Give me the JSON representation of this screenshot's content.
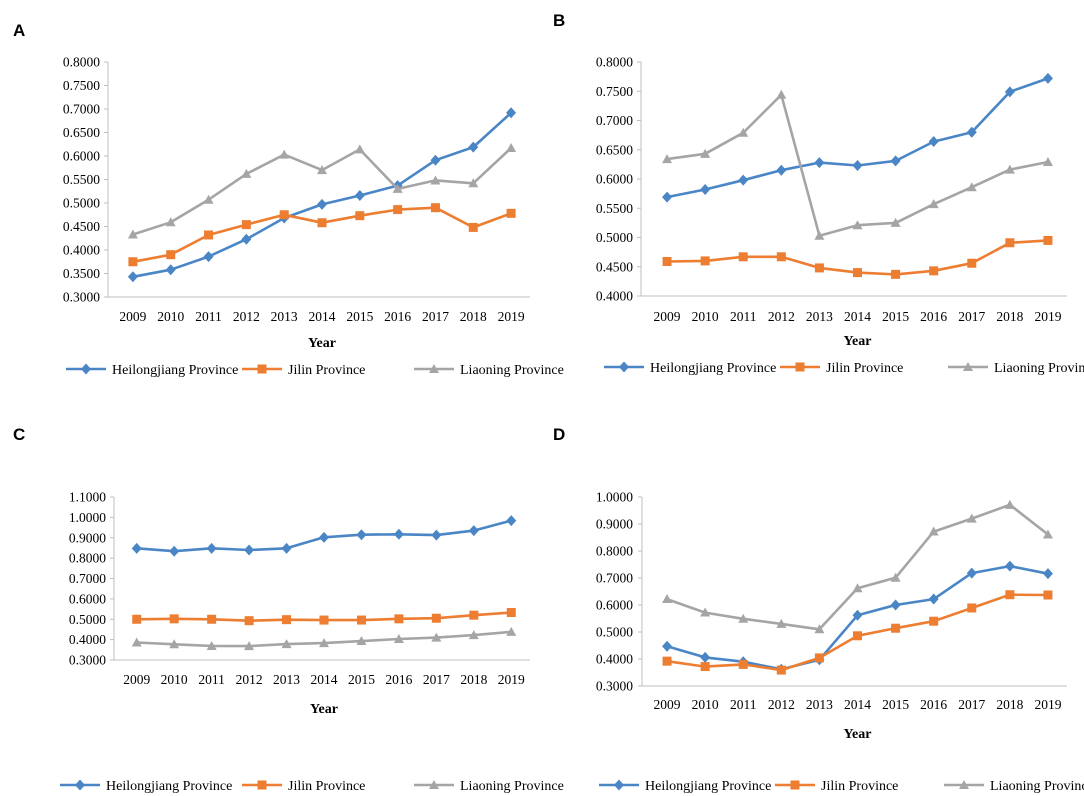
{
  "chart_data": [
    {
      "panel": "A",
      "type": "line",
      "xlabel": "Year",
      "ylabel": "",
      "ylim": [
        0.3,
        0.8
      ],
      "yticks": [
        "0.3000",
        "0.3500",
        "0.4000",
        "0.4500",
        "0.5000",
        "0.5500",
        "0.6000",
        "0.6500",
        "0.7000",
        "0.7500",
        "0.8000"
      ],
      "categories": [
        "2009",
        "2010",
        "2011",
        "2012",
        "2013",
        "2014",
        "2015",
        "2016",
        "2017",
        "2018",
        "2019"
      ],
      "legend_position": "bottom",
      "series": [
        {
          "name": "Heilongjiang Province",
          "color": "#4a86c6",
          "marker": "diamond",
          "values": [
            0.343,
            0.358,
            0.386,
            0.423,
            0.468,
            0.497,
            0.516,
            0.537,
            0.591,
            0.619,
            0.692
          ]
        },
        {
          "name": "Jilin Province",
          "color": "#ed7d31",
          "marker": "square",
          "values": [
            0.375,
            0.39,
            0.432,
            0.454,
            0.475,
            0.458,
            0.473,
            0.486,
            0.49,
            0.448,
            0.478
          ]
        },
        {
          "name": "Liaoning Province",
          "color": "#a5a5a5",
          "marker": "triangle",
          "values": [
            0.433,
            0.459,
            0.507,
            0.562,
            0.603,
            0.57,
            0.614,
            0.53,
            0.548,
            0.542,
            0.617
          ]
        }
      ]
    },
    {
      "panel": "B",
      "type": "line",
      "xlabel": "Year",
      "ylabel": "",
      "ylim": [
        0.4,
        0.8
      ],
      "yticks": [
        "0.4000",
        "0.4500",
        "0.5000",
        "0.5500",
        "0.6000",
        "0.6500",
        "0.7000",
        "0.7500",
        "0.8000"
      ],
      "categories": [
        "2009",
        "2010",
        "2011",
        "2012",
        "2013",
        "2014",
        "2015",
        "2016",
        "2017",
        "2018",
        "2019"
      ],
      "legend_position": "bottom",
      "series": [
        {
          "name": "Heilongjiang Province",
          "color": "#4a86c6",
          "marker": "diamond",
          "values": [
            0.569,
            0.582,
            0.598,
            0.615,
            0.628,
            0.623,
            0.631,
            0.664,
            0.68,
            0.749,
            0.772
          ]
        },
        {
          "name": "Jilin Province",
          "color": "#ed7d31",
          "marker": "square",
          "values": [
            0.459,
            0.46,
            0.467,
            0.467,
            0.448,
            0.44,
            0.437,
            0.443,
            0.456,
            0.491,
            0.495
          ]
        },
        {
          "name": "Liaoning Province",
          "color": "#a5a5a5",
          "marker": "triangle",
          "values": [
            0.634,
            0.643,
            0.679,
            0.744,
            0.503,
            0.521,
            0.525,
            0.557,
            0.586,
            0.616,
            0.629
          ]
        }
      ]
    },
    {
      "panel": "C",
      "type": "line",
      "xlabel": "Year",
      "ylabel": "",
      "ylim": [
        0.3,
        1.1
      ],
      "yticks": [
        "0.3000",
        "0.4000",
        "0.5000",
        "0.6000",
        "0.7000",
        "0.8000",
        "0.9000",
        "1.0000",
        "1.1000"
      ],
      "categories": [
        "2009",
        "2010",
        "2011",
        "2012",
        "2013",
        "2014",
        "2015",
        "2016",
        "2017",
        "2018",
        "2019"
      ],
      "legend_position": "bottom",
      "series": [
        {
          "name": "Heilongjiang Province",
          "color": "#4a86c6",
          "marker": "diamond",
          "values": [
            0.848,
            0.834,
            0.848,
            0.84,
            0.848,
            0.902,
            0.915,
            0.917,
            0.913,
            0.935,
            0.984
          ]
        },
        {
          "name": "Jilin Province",
          "color": "#ed7d31",
          "marker": "square",
          "values": [
            0.5,
            0.502,
            0.5,
            0.493,
            0.498,
            0.496,
            0.496,
            0.502,
            0.505,
            0.52,
            0.533
          ]
        },
        {
          "name": "Liaoning Province",
          "color": "#a5a5a5",
          "marker": "triangle",
          "values": [
            0.386,
            0.377,
            0.369,
            0.368,
            0.378,
            0.383,
            0.393,
            0.403,
            0.41,
            0.422,
            0.438
          ]
        }
      ]
    },
    {
      "panel": "D",
      "type": "line",
      "xlabel": "Year",
      "ylabel": "",
      "ylim": [
        0.3,
        1.0
      ],
      "yticks": [
        "0.3000",
        "0.4000",
        "0.5000",
        "0.6000",
        "0.7000",
        "0.8000",
        "0.9000",
        "1.0000"
      ],
      "categories": [
        "2009",
        "2010",
        "2011",
        "2012",
        "2013",
        "2014",
        "2015",
        "2016",
        "2017",
        "2018",
        "2019"
      ],
      "legend_position": "bottom",
      "series": [
        {
          "name": "Heilongjiang Province",
          "color": "#4a86c6",
          "marker": "diamond",
          "values": [
            0.447,
            0.406,
            0.39,
            0.362,
            0.397,
            0.562,
            0.6,
            0.622,
            0.718,
            0.744,
            0.716
          ]
        },
        {
          "name": "Jilin Province",
          "color": "#ed7d31",
          "marker": "square",
          "values": [
            0.392,
            0.372,
            0.38,
            0.359,
            0.404,
            0.486,
            0.514,
            0.54,
            0.589,
            0.638,
            0.637
          ]
        },
        {
          "name": "Liaoning Province",
          "color": "#a5a5a5",
          "marker": "triangle",
          "values": [
            0.622,
            0.572,
            0.549,
            0.53,
            0.51,
            0.662,
            0.701,
            0.872,
            0.92,
            0.971,
            0.861
          ]
        }
      ]
    }
  ]
}
